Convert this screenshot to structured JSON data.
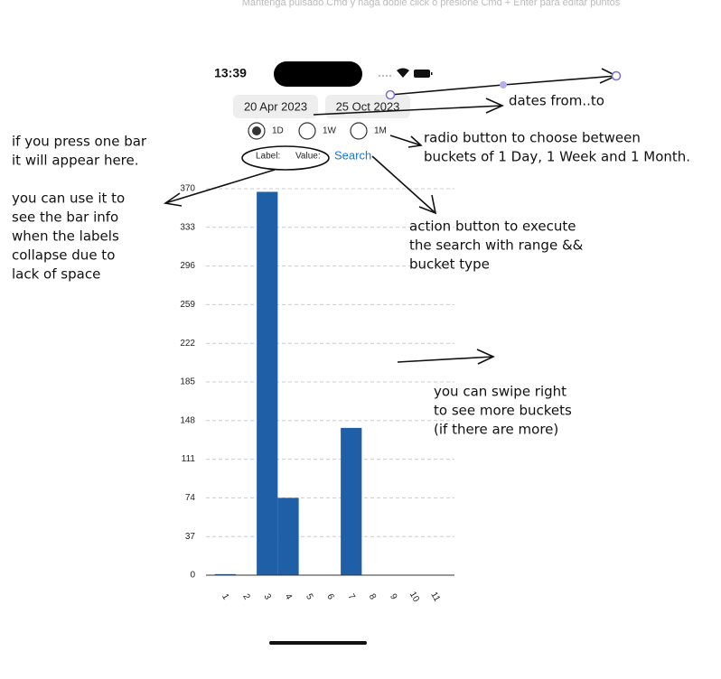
{
  "hint": "Mantenga pulsado Cmd y haga doble click o presione Cmd + Enter para editar puntos",
  "status_bar": {
    "time": "13:39"
  },
  "date_range": {
    "from": "20 Apr 2023",
    "to": "25 Oct 2023"
  },
  "bucket_options": [
    {
      "label": "1D",
      "selected": true
    },
    {
      "label": "1W",
      "selected": false
    },
    {
      "label": "1M",
      "selected": false
    }
  ],
  "info": {
    "label": "Label:",
    "value": "Value:"
  },
  "search_button": "Search",
  "annotations": {
    "dates": [
      "dates from..to"
    ],
    "radio": [
      "radio button to choose between",
      "buckets of 1 Day, 1 Week and 1 Month."
    ],
    "info": [
      "if you press one bar",
      "it will appear here."
    ],
    "labels": [
      "you can use it to",
      "see the bar info",
      "when the labels",
      "collapse due to",
      "lack of space"
    ],
    "search": [
      "action button to execute",
      "the search with range &&",
      "bucket type"
    ],
    "swipe": [
      "you can swipe right",
      "to see more buckets",
      "(if there are more)"
    ]
  },
  "chart_data": {
    "type": "bar",
    "categories": [
      null,
      "1",
      "2",
      "3",
      "4",
      "5",
      "6",
      "7",
      "8",
      "9",
      "10",
      "11",
      null
    ],
    "values": [
      null,
      1,
      0,
      367,
      74,
      0,
      0,
      141,
      0,
      0,
      0,
      0,
      null
    ],
    "color": "#1f5fa8",
    "ylim": [
      0,
      370
    ],
    "yticks": [
      0,
      37,
      74,
      111,
      148,
      185,
      222,
      259,
      296,
      333,
      370
    ],
    "grid": true
  }
}
